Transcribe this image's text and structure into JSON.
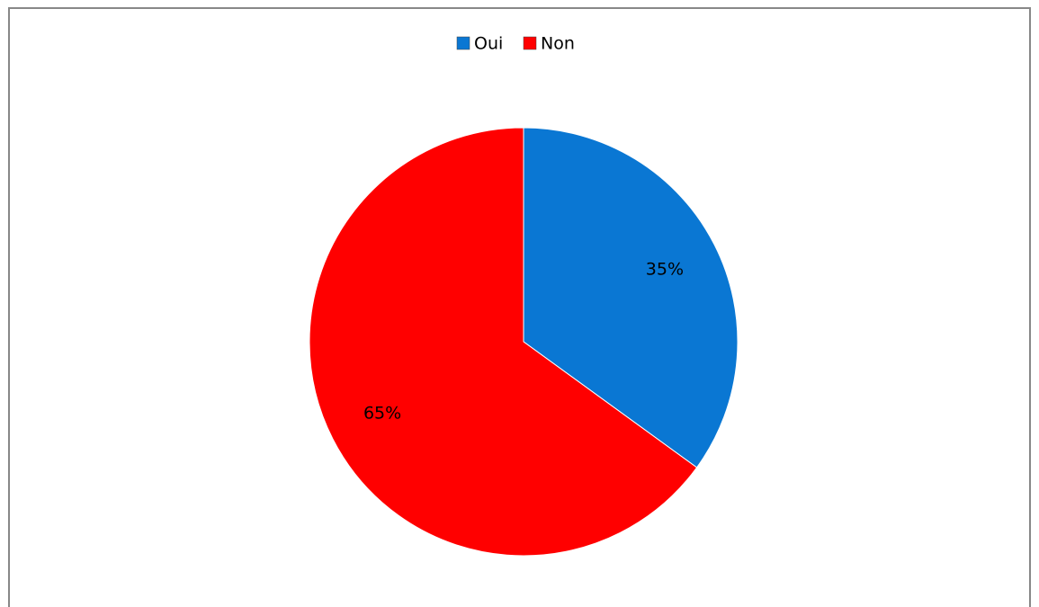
{
  "chart_data": {
    "type": "pie",
    "categories": [
      "Oui",
      "Non"
    ],
    "values": [
      35,
      65
    ],
    "value_labels": [
      "35%",
      "65%"
    ],
    "colors": [
      "#0a77d3",
      "#ff0000"
    ],
    "legend": "top"
  }
}
